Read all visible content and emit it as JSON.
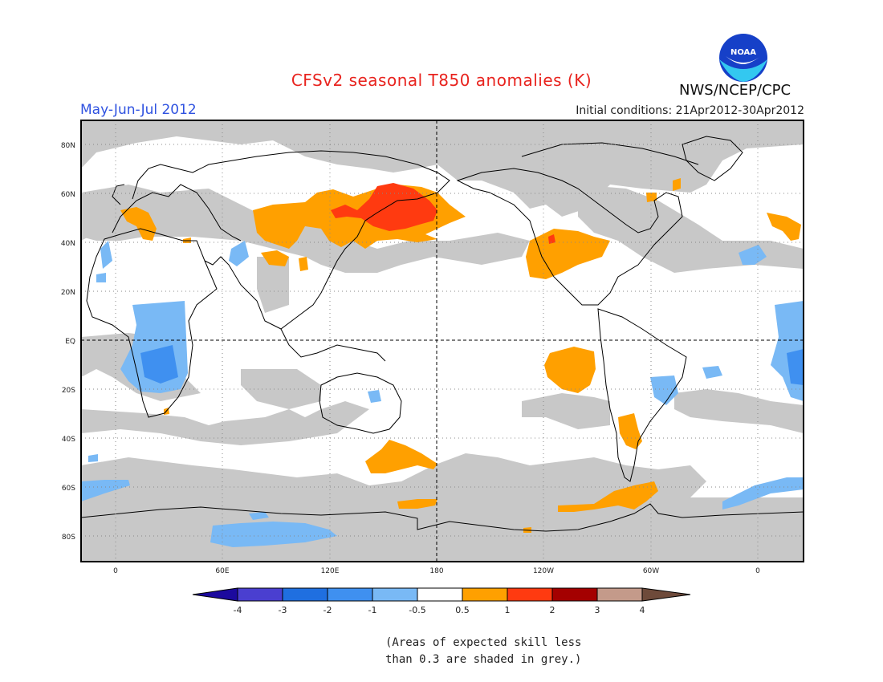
{
  "title": "CFSv2 seasonal T850 anomalies (K)",
  "period": "May-Jun-Jul 2012",
  "initial_conditions": "Initial conditions: 21Apr2012-30Apr2012",
  "agency": "NWS/NCEP/CPC",
  "logo_text": "NOAA",
  "lat_labels": [
    "80N",
    "60N",
    "40N",
    "20N",
    "EQ",
    "20S",
    "40S",
    "60S",
    "80S"
  ],
  "lon_labels": [
    "0",
    "60E",
    "120E",
    "180",
    "120W",
    "60W",
    "0"
  ],
  "colorbar": {
    "labels": [
      "-4",
      "-3",
      "-2",
      "-1",
      "-0.5",
      "0.5",
      "1",
      "2",
      "3",
      "4"
    ],
    "colors": [
      "#1c0a9e",
      "#4a3fd0",
      "#1f6fe0",
      "#3f90f0",
      "#79b9f5",
      "#ffffff",
      "#ffa000",
      "#ff3a10",
      "#a40000",
      "#c49a8a",
      "#6e4a3a"
    ]
  },
  "note_lines": [
    "(Areas of expected skill less",
    "than 0.3 are shaded in grey.)"
  ],
  "colors": {
    "grey_low_skill": "#c8c8c8",
    "warm_0_5_1": "#ffa000",
    "warm_1_2": "#ff3a10",
    "cool_m1_m0_5": "#79b9f5",
    "cool_m2_m1": "#3f90f0",
    "title": "#e8231e",
    "period": "#2f52e0"
  }
}
